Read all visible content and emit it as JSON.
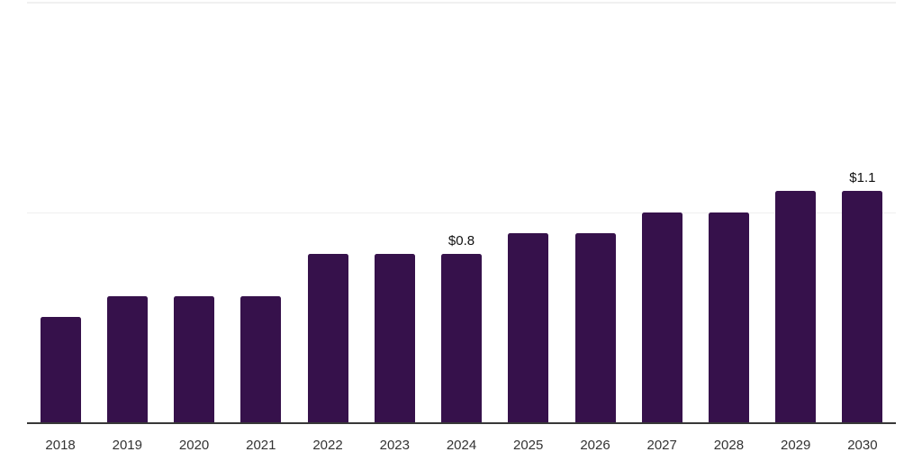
{
  "chart_data": {
    "type": "bar",
    "title": "",
    "xlabel": "",
    "ylabel": "",
    "categories": [
      "2018",
      "2019",
      "2020",
      "2021",
      "2022",
      "2023",
      "2024",
      "2025",
      "2026",
      "2027",
      "2028",
      "2029",
      "2030"
    ],
    "values": [
      0.5,
      0.6,
      0.6,
      0.6,
      0.8,
      0.8,
      0.8,
      0.9,
      0.9,
      1.0,
      1.0,
      1.1,
      1.1
    ],
    "bar_labels": [
      "",
      "",
      "",
      "",
      "",
      "",
      "$0.8",
      "",
      "",
      "",
      "",
      "",
      "$1.1"
    ],
    "ylim": [
      0,
      2
    ],
    "gridline_values": [
      1,
      2
    ],
    "grid": "horizontal",
    "legend": "none",
    "y_tick_labels_visible": false,
    "colors": {
      "bar": "#36114B",
      "axis_line": "#383838",
      "gridline": "#F0F0F0",
      "tick_label": "#333333",
      "value_label": "#111111",
      "background": "#FFFFFF"
    }
  }
}
